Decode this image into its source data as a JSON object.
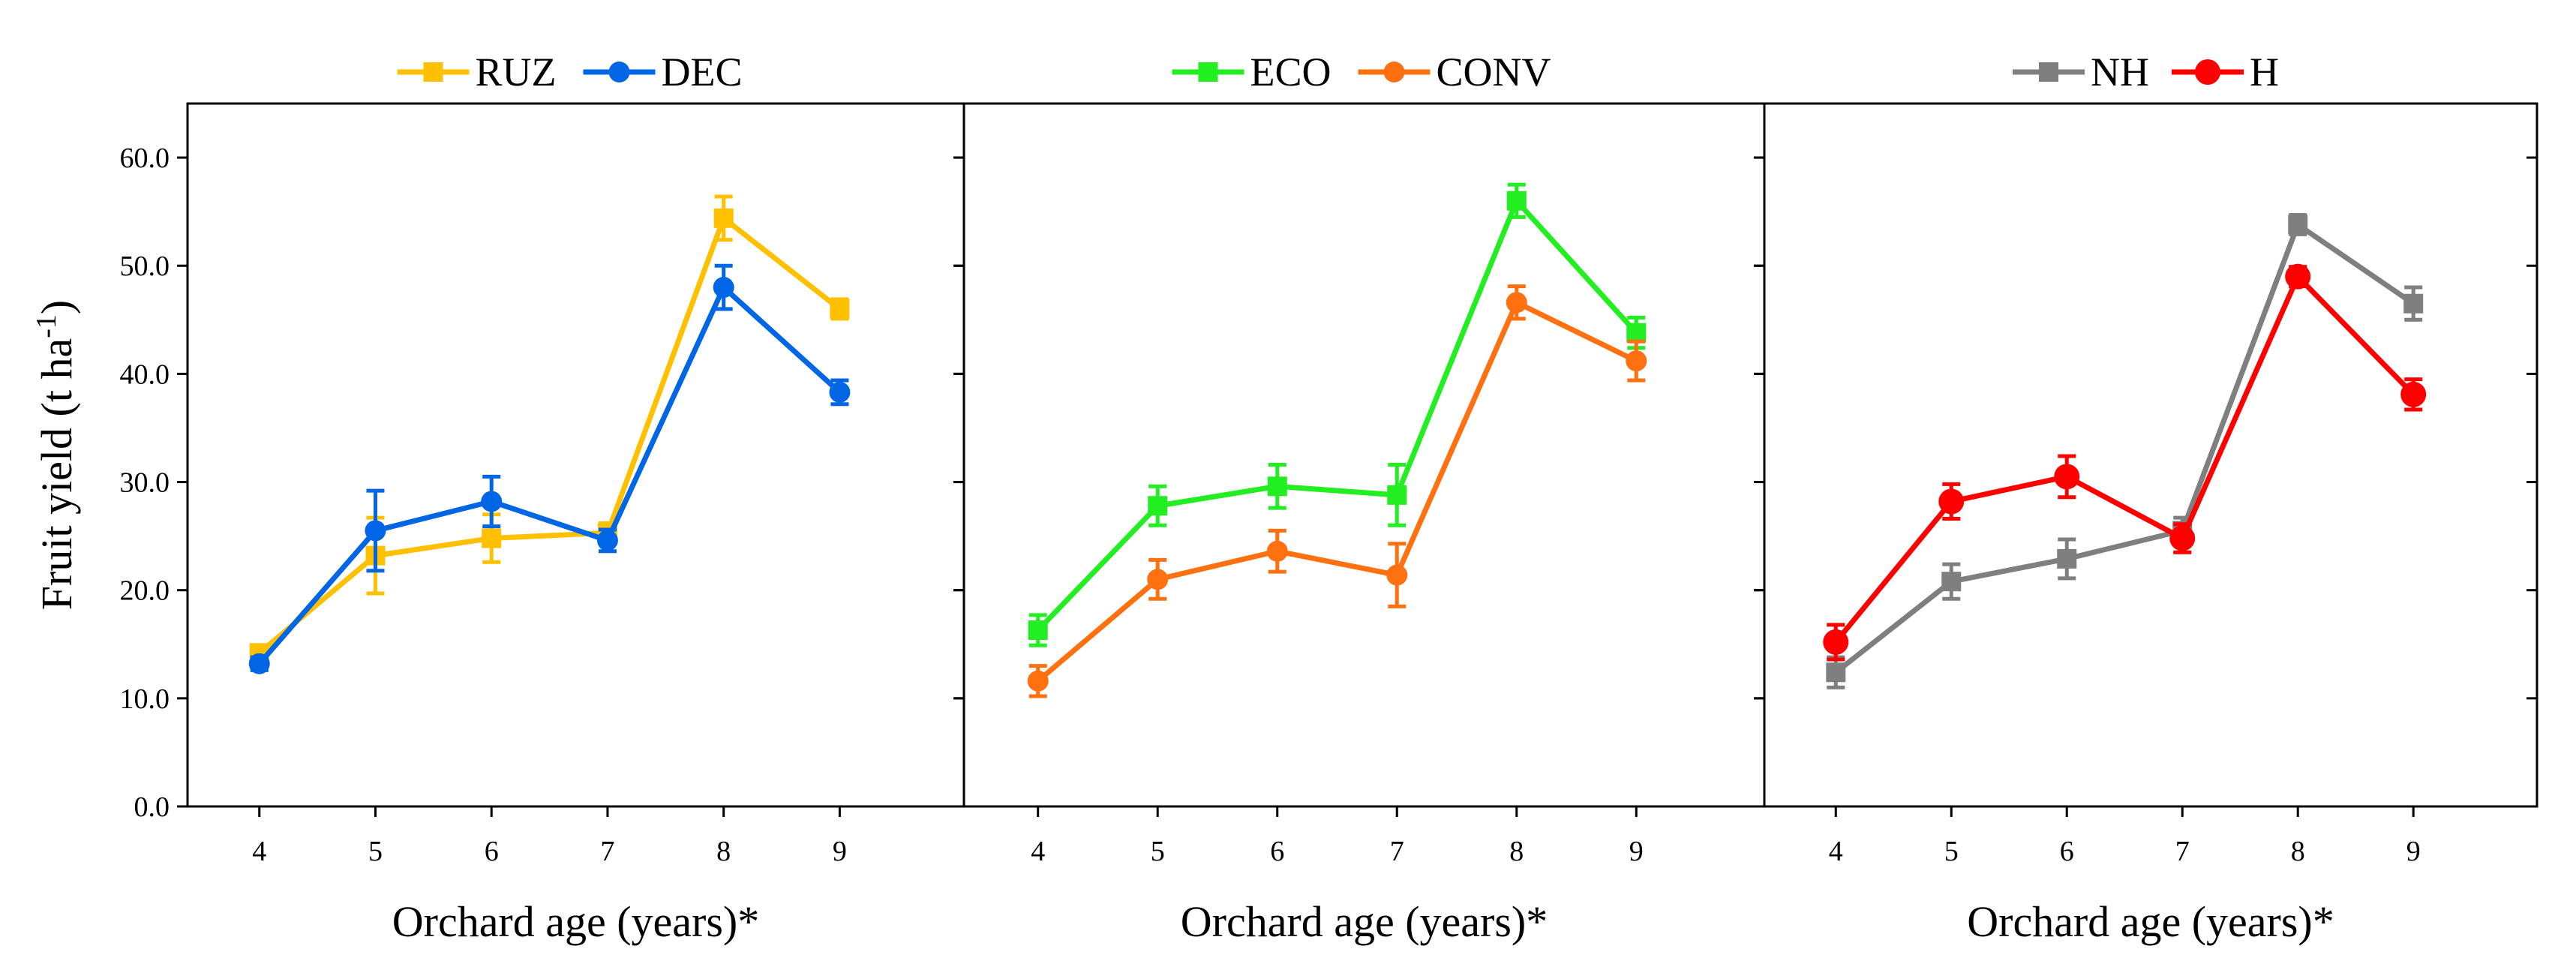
{
  "chart_data": [
    {
      "type": "line",
      "x": [
        4,
        5,
        6,
        7,
        8,
        9
      ],
      "xlabel": "Orchard age (years)*",
      "ylabel": "Fruit yield (t ha",
      "ylabel_sup": "-1",
      "ylabel_close": ")",
      "ylim": [
        0,
        65
      ],
      "yticks": [
        0,
        10,
        20,
        30,
        40,
        50,
        60
      ],
      "ytick_labels": [
        "0.0",
        "10.0",
        "20.0",
        "30.0",
        "40.0",
        "50.0",
        "60.0"
      ],
      "xtick_labels": [
        "4",
        "5",
        "6",
        "7",
        "8",
        "9"
      ],
      "legend_position": "top",
      "series": [
        {
          "name": "RUZ",
          "color": "#FFC000",
          "marker": "square",
          "values": [
            14.2,
            23.2,
            24.8,
            25.3,
            54.4,
            46.0
          ],
          "errors": [
            0.6,
            3.5,
            2.2,
            0.9,
            2.0,
            0.9
          ]
        },
        {
          "name": "DEC",
          "color": "#0066E6",
          "marker": "circle",
          "values": [
            13.2,
            25.5,
            28.2,
            24.6,
            48.0,
            38.3
          ],
          "errors": [
            0.6,
            3.7,
            2.3,
            1.0,
            2.0,
            1.1
          ]
        }
      ]
    },
    {
      "type": "line",
      "x": [
        4,
        5,
        6,
        7,
        8,
        9
      ],
      "xlabel": "Orchard age (years)*",
      "ylim": [
        0,
        65
      ],
      "yticks": [
        0,
        10,
        20,
        30,
        40,
        50,
        60
      ],
      "xtick_labels": [
        "4",
        "5",
        "6",
        "7",
        "8",
        "9"
      ],
      "legend_position": "top",
      "series": [
        {
          "name": "ECO",
          "color": "#22EE22",
          "marker": "square",
          "values": [
            16.3,
            27.8,
            29.6,
            28.8,
            56.0,
            43.8
          ],
          "errors": [
            1.4,
            1.8,
            2.0,
            2.8,
            1.5,
            1.4
          ]
        },
        {
          "name": "CONV",
          "color": "#FF7010",
          "marker": "circle",
          "values": [
            11.6,
            21.0,
            23.6,
            21.4,
            46.6,
            41.2
          ],
          "errors": [
            1.4,
            1.8,
            1.9,
            2.9,
            1.5,
            1.8
          ]
        }
      ]
    },
    {
      "type": "line",
      "x": [
        4,
        5,
        6,
        7,
        8,
        9
      ],
      "xlabel": "Orchard age (years)*",
      "ylim": [
        0,
        65
      ],
      "yticks": [
        0,
        10,
        20,
        30,
        40,
        50,
        60
      ],
      "xtick_labels": [
        "4",
        "5",
        "6",
        "7",
        "8",
        "9"
      ],
      "legend_position": "top",
      "series": [
        {
          "name": "NH",
          "color": "#7F7F7F",
          "marker": "square",
          "values": [
            12.4,
            20.8,
            22.9,
            25.5,
            53.8,
            46.5
          ],
          "errors": [
            1.4,
            1.6,
            1.8,
            1.2,
            0.9,
            1.5
          ]
        },
        {
          "name": "H",
          "color": "#FF0000",
          "marker": "circle",
          "values": [
            15.2,
            28.2,
            30.5,
            24.8,
            49.0,
            38.1
          ],
          "errors": [
            1.6,
            1.6,
            1.9,
            1.3,
            0.9,
            1.4
          ]
        }
      ]
    }
  ]
}
